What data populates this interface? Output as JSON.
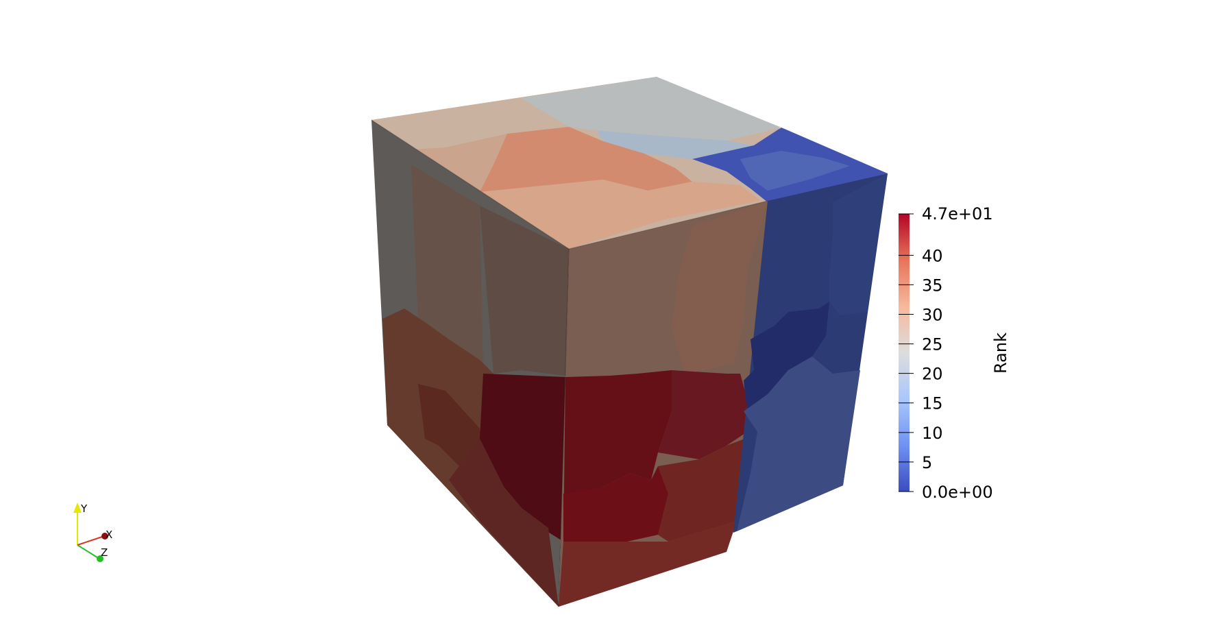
{
  "scene": {
    "colorbar": {
      "title": "Rank",
      "min_label": "0.0e+00",
      "max_label": "4.7e+01",
      "range": [
        0,
        47
      ],
      "tick_values": [
        5,
        10,
        15,
        20,
        25,
        30,
        35,
        40
      ],
      "tick_labels": [
        "5",
        "10",
        "15",
        "20",
        "25",
        "30",
        "35",
        "40"
      ],
      "colormap_stops": [
        "#3b4cc0",
        "#6f92f3",
        "#aac7fd",
        "#dddddd",
        "#f7b89c",
        "#e7745b",
        "#b40426"
      ]
    },
    "orientation_axes": {
      "y_label": "Y",
      "x_label": "X",
      "z_label": "Z",
      "y_color": "#e6e600",
      "x_color": "#e03020",
      "z_color": "#20c020"
    },
    "cube_colors": {
      "top": [
        "#c9b3a0",
        "#c8a892",
        "#b9bcbd",
        "#a9b8c8",
        "#d28b6e",
        "#d6a58a",
        "#4153b0",
        "#5067b6"
      ],
      "left": [
        "#5e5a57",
        "#665248",
        "#5f4c44",
        "#643b2d",
        "#5b2920",
        "#7b2a1f"
      ],
      "front": [
        "#7a5e52",
        "#835e4f",
        "#4f0c14",
        "#650f17",
        "#681821",
        "#6f2623",
        "#6d0f16"
      ],
      "right": [
        "#2d3b74",
        "#222c69",
        "#3c4c82",
        "#2f3f7a"
      ]
    }
  }
}
